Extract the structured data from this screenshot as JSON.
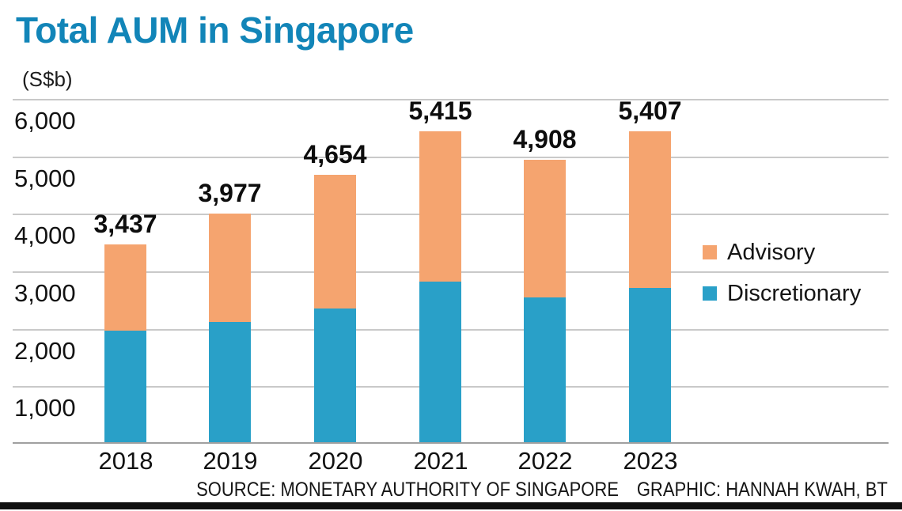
{
  "colors": {
    "title": "#1285b8",
    "advisory": "#f5a46f",
    "discretionary": "#29a0c8",
    "footer_bar": "#101010"
  },
  "chart_data": {
    "type": "bar",
    "stacked": true,
    "title": "Total AUM in Singapore",
    "unit_label": "(S$b)",
    "categories": [
      "2018",
      "2019",
      "2020",
      "2021",
      "2022",
      "2023"
    ],
    "series": [
      {
        "name": "Advisory",
        "color": "#f5a46f",
        "values": [
          1497,
          1887,
          2324,
          2625,
          2388,
          2727
        ]
      },
      {
        "name": "Discretionary",
        "color": "#29a0c8",
        "values": [
          1940,
          2090,
          2330,
          2790,
          2520,
          2680
        ]
      }
    ],
    "totals": [
      3437,
      3977,
      4654,
      5415,
      4908,
      5407
    ],
    "total_labels": [
      "3,437",
      "3,977",
      "4,654",
      "5,415",
      "4,908",
      "5,407"
    ],
    "ylim": [
      0,
      6000
    ],
    "yticks": [
      6000,
      5000,
      4000,
      3000,
      2000,
      1000
    ],
    "ytick_labels": [
      "6,000",
      "5,000",
      "4,000",
      "3,000",
      "2,000",
      "1,000"
    ],
    "grid": "horizontal",
    "legend_position": "center-right"
  },
  "footer": {
    "source": "SOURCE: MONETARY AUTHORITY OF SINGAPORE",
    "credit": "GRAPHIC: HANNAH KWAH, BT"
  }
}
